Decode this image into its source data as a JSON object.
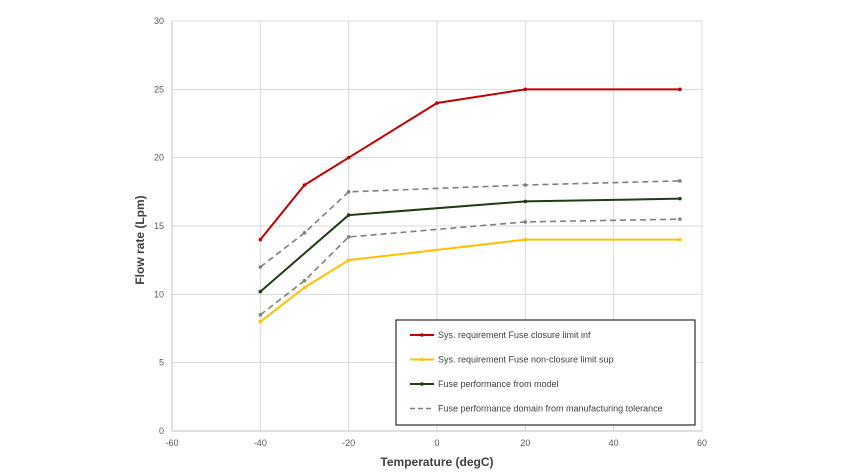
{
  "chart_data": {
    "type": "line",
    "title": "",
    "xlabel": "Temperature (degC)",
    "ylabel": "Flow rate (Lpm)",
    "xlim": [
      -60,
      60
    ],
    "ylim": [
      0,
      30
    ],
    "x_ticks": [
      -60,
      -40,
      -20,
      0,
      20,
      40,
      60
    ],
    "y_ticks": [
      0,
      5,
      10,
      15,
      20,
      25,
      30
    ],
    "x_tick_labels": [
      "-60",
      "-40",
      "-20",
      "0",
      "20",
      "40",
      "60"
    ],
    "y_tick_labels": [
      "0",
      "5",
      "10",
      "15",
      "20",
      "25",
      "30"
    ],
    "grid": true,
    "legend_position": "bottom-right",
    "series": [
      {
        "name": "Sys. requirement Fuse closure limit inf",
        "color": "#c00000",
        "style": "solid",
        "points": [
          [
            -40,
            14
          ],
          [
            -30,
            18
          ],
          [
            -20,
            20
          ],
          [
            0,
            24
          ],
          [
            20,
            25
          ],
          [
            55,
            25
          ]
        ]
      },
      {
        "name": "Sys. requirement Fuse non-closure limit sup",
        "color": "#ffc000",
        "style": "solid",
        "points": [
          [
            -40,
            8
          ],
          [
            -30,
            10.5
          ],
          [
            -20,
            12.5
          ],
          [
            20,
            14
          ],
          [
            55,
            14
          ]
        ]
      },
      {
        "name": "Fuse performance from model",
        "color": "#1e3d14",
        "style": "solid",
        "points": [
          [
            -40,
            10.2
          ],
          [
            -20,
            15.8
          ],
          [
            20,
            16.8
          ],
          [
            55,
            17
          ]
        ]
      },
      {
        "name": "Fuse performance domain from manufacturing tolerance",
        "color": "#7f7f7f",
        "style": "dashed",
        "points": [
          [
            -40,
            12
          ],
          [
            -30,
            14.5
          ],
          [
            -20,
            17.5
          ],
          [
            20,
            18
          ],
          [
            55,
            18.3
          ]
        ]
      },
      {
        "name": "",
        "color": "#7f7f7f",
        "style": "dashed",
        "legend": false,
        "points": [
          [
            -40,
            8.5
          ],
          [
            -30,
            11
          ],
          [
            -20,
            14.2
          ],
          [
            20,
            15.3
          ],
          [
            55,
            15.5
          ]
        ]
      }
    ]
  }
}
